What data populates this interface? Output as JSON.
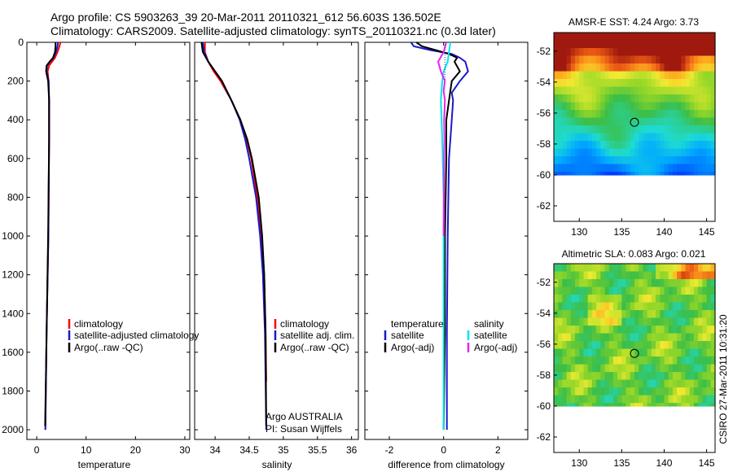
{
  "title_line1": "Argo profile: CS 5903263_39 20-Mar-2011 20110321_612 56.603S 136.502E",
  "title_line2": "Climatology: CARS2009. Satellite-adjusted climatology: synTS_20110321.nc (0.3d later)",
  "credit": "CSIRO 27-Mar-2011 10:31:20",
  "colors": {
    "red": "#ff0000",
    "blue": "#1a1acc",
    "black": "#000000",
    "cyan": "#00e5ee",
    "magenta": "#ee22ee",
    "dotted": "#2020c0"
  },
  "chart_data": [
    {
      "id": "temperature",
      "type": "line",
      "xlabel": "temperature",
      "ylabel": "",
      "xlim": [
        -2,
        31
      ],
      "ylim": [
        2050,
        0
      ],
      "xticks": [
        0,
        10,
        20,
        30
      ],
      "xtick_labels": [
        "0",
        "10",
        "20",
        "30"
      ],
      "yticks": [
        0,
        200,
        400,
        600,
        800,
        1000,
        1200,
        1400,
        1600,
        1800,
        2000
      ],
      "ytick_labels": [
        "0",
        "200",
        "400",
        "600",
        "800",
        "1000",
        "1200",
        "1400",
        "1600",
        "1800",
        "2000"
      ],
      "legend": [
        "climatology",
        "satellite-adjusted climatology",
        "Argo(..raw -QC)"
      ],
      "series": [
        {
          "name": "climatology",
          "color": "red",
          "depth": [
            0,
            20,
            50,
            80,
            100,
            120,
            150,
            200,
            300,
            500,
            1000,
            1500,
            2000
          ],
          "values": [
            4.8,
            4.6,
            4.2,
            3.7,
            3.1,
            2.5,
            2.2,
            2.4,
            2.5,
            2.5,
            2.35,
            2.0,
            1.75
          ]
        },
        {
          "name": "satellite-adjusted climatology",
          "color": "blue",
          "depth": [
            0,
            20,
            50,
            80,
            100,
            120,
            150,
            200,
            300,
            500,
            1000,
            1500,
            2000
          ],
          "values": [
            4.3,
            4.2,
            3.9,
            3.4,
            2.7,
            2.1,
            2.0,
            2.4,
            2.5,
            2.5,
            2.35,
            2.0,
            1.75
          ]
        },
        {
          "name": "Argo(..raw -QC)",
          "color": "black",
          "depth": [
            0,
            20,
            50,
            80,
            100,
            120,
            150,
            200,
            300,
            500,
            1000,
            1500,
            1980
          ],
          "values": [
            3.8,
            3.8,
            3.7,
            3.3,
            2.6,
            2.0,
            1.9,
            2.3,
            2.5,
            2.5,
            2.3,
            2.0,
            1.7
          ]
        }
      ]
    },
    {
      "id": "salinity",
      "type": "line",
      "xlabel": "salinity",
      "ylabel": "",
      "xlim": [
        33.7,
        36.1
      ],
      "ylim": [
        2050,
        0
      ],
      "xticks": [
        34,
        34.5,
        35,
        35.5,
        36
      ],
      "xtick_labels": [
        "34",
        "34.5",
        "35",
        "35.5",
        "36"
      ],
      "legend": [
        "climatology",
        "satellite adj. clim.",
        "Argo(..raw -QC)"
      ],
      "annotation": [
        "Argo AUSTRALIA",
        "PI: Susan Wijffels"
      ],
      "series": [
        {
          "name": "climatology",
          "color": "red",
          "depth": [
            0,
            50,
            100,
            150,
            200,
            300,
            400,
            500,
            600,
            800,
            1000,
            1200,
            1500,
            1750
          ],
          "values": [
            33.85,
            33.85,
            33.9,
            33.98,
            34.08,
            34.24,
            34.37,
            34.46,
            34.53,
            34.62,
            34.68,
            34.72,
            34.74,
            34.75
          ]
        },
        {
          "name": "satellite adj. clim.",
          "color": "blue",
          "depth": [
            0,
            50,
            100,
            150,
            200,
            300,
            400,
            500,
            600,
            800,
            1000,
            1200,
            1500,
            2000
          ],
          "values": [
            33.82,
            33.84,
            33.9,
            34.0,
            34.1,
            34.24,
            34.36,
            34.44,
            34.5,
            34.6,
            34.66,
            34.7,
            34.73,
            34.75
          ]
        },
        {
          "name": "Argo(..raw -QC)",
          "color": "black",
          "depth": [
            0,
            50,
            100,
            150,
            200,
            300,
            400,
            500,
            600,
            800,
            1000,
            1200,
            1500,
            1980
          ],
          "values": [
            33.8,
            33.82,
            33.9,
            34.0,
            34.1,
            34.24,
            34.37,
            34.47,
            34.54,
            34.64,
            34.69,
            34.72,
            34.74,
            34.75
          ]
        }
      ]
    },
    {
      "id": "difference",
      "type": "line",
      "xlabel": "difference from climatology",
      "ylabel": "",
      "xlim": [
        -2.9,
        3.1
      ],
      "ylim": [
        2050,
        0
      ],
      "xticks": [
        -2,
        0,
        2
      ],
      "xtick_labels": [
        "-2",
        "0",
        "2"
      ],
      "legend_temperature": [
        "temperature",
        "satellite",
        "Argo(-adj)"
      ],
      "legend_salinity": [
        "salinity",
        "satellite",
        "Argo(-adj)"
      ],
      "series": [
        {
          "name": "temperature satellite",
          "color": "blue",
          "depth": [
            0,
            20,
            40,
            60,
            80,
            100,
            150,
            200,
            260,
            300,
            400,
            600,
            1000,
            1500,
            2000
          ],
          "values": [
            -1.2,
            -1.1,
            -0.5,
            0.3,
            0.6,
            0.8,
            0.9,
            0.6,
            0.3,
            0.35,
            0.3,
            0.2,
            0.15,
            0.12,
            0.12
          ]
        },
        {
          "name": "temperature Argo(-adj)",
          "color": "black",
          "depth": [
            0,
            20,
            40,
            60,
            80,
            100,
            150,
            200,
            250,
            300,
            400,
            600,
            1000,
            1500,
            2000
          ],
          "values": [
            -1.0,
            -0.8,
            -0.3,
            0.2,
            0.5,
            0.4,
            0.6,
            0.3,
            0.25,
            0.2,
            0.1,
            0.1,
            0.05,
            0.05,
            0.0
          ]
        },
        {
          "name": "salinity satellite",
          "color": "cyan",
          "depth": [
            0,
            50,
            100,
            150,
            200,
            300,
            500,
            800,
            1000,
            1500,
            2000
          ],
          "values": [
            0.25,
            0.2,
            0.15,
            0.0,
            -0.05,
            -0.1,
            -0.05,
            0.0,
            0.0,
            0.0,
            0.0
          ]
        },
        {
          "name": "salinity Argo(-adj)",
          "color": "magenta",
          "depth": [
            0,
            50,
            100,
            150,
            200,
            250,
            300,
            400,
            500,
            600,
            800,
            1000
          ],
          "values": [
            0.1,
            0.0,
            -0.2,
            -0.1,
            0.05,
            0.0,
            0.05,
            0.02,
            0.03,
            0.02,
            0.01,
            0.0
          ]
        },
        {
          "name": "reference",
          "color": "dotted",
          "depth": [
            0,
            100,
            200
          ],
          "values": [
            0.05,
            0.05,
            0.05
          ]
        }
      ]
    },
    {
      "id": "sst_map",
      "type": "heatmap",
      "title": "AMSR-E SST: 4.24 Argo: 3.73",
      "xlim": [
        127,
        146
      ],
      "ylim": [
        -63,
        -50.8
      ],
      "xticks": [
        130,
        135,
        140,
        145
      ],
      "xtick_labels": [
        "130",
        "135",
        "140",
        "145"
      ],
      "yticks": [
        -52,
        -54,
        -56,
        -58,
        -60,
        -62
      ],
      "ytick_labels": [
        "-52",
        "-54",
        "-56",
        "-58",
        "-60",
        "-62"
      ],
      "data_lat_range": [
        -60,
        -50.8
      ],
      "marker": {
        "lon": 136.5,
        "lat": -56.6
      }
    },
    {
      "id": "sla_map",
      "type": "heatmap",
      "title": "Altimetric SLA: 0.083 Argo: 0.021",
      "xlim": [
        127,
        146
      ],
      "ylim": [
        -63,
        -50.8
      ],
      "xticks": [
        130,
        135,
        140,
        145
      ],
      "xtick_labels": [
        "130",
        "135",
        "140",
        "145"
      ],
      "yticks": [
        -52,
        -54,
        -56,
        -58,
        -60,
        -62
      ],
      "ytick_labels": [
        "-52",
        "-54",
        "-56",
        "-58",
        "-60",
        "-62"
      ],
      "data_lat_range": [
        -60,
        -50.8
      ],
      "marker": {
        "lon": 136.5,
        "lat": -56.6
      }
    }
  ]
}
